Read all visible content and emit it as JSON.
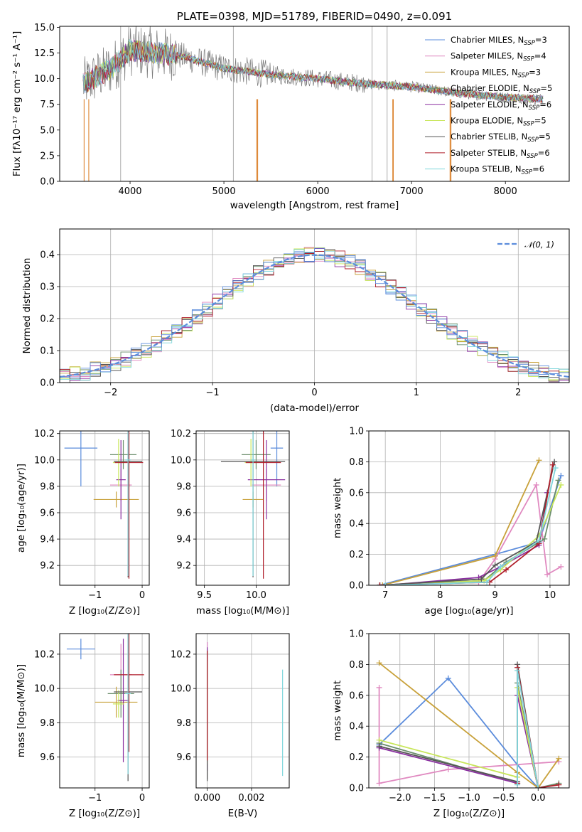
{
  "chart_data": [
    {
      "id": "spectrum",
      "type": "line",
      "title": "PLATE=0398, MJD=51789, FIBERID=0490, z=0.091",
      "xlabel": "wavelength [Angstrom, rest frame]",
      "ylabel": "Flux [fλ10⁻¹⁷ erg cm⁻² s⁻¹ A⁻¹]",
      "xlim": [
        3250,
        8680
      ],
      "ylim": [
        0,
        15.1
      ],
      "xticks": [
        4000,
        5000,
        6000,
        7000,
        8000
      ],
      "yticks": [
        0.0,
        2.5,
        5.0,
        7.5,
        10.0,
        12.5,
        15.0
      ],
      "legend_position": "top-right",
      "continuum": {
        "x": [
          3500,
          3800,
          4000,
          4500,
          5000,
          5500,
          6000,
          6500,
          7000,
          7500,
          8000,
          8400
        ],
        "y": [
          9.5,
          11.0,
          12.8,
          12.3,
          11.0,
          10.4,
          10.0,
          9.5,
          9.2,
          8.6,
          8.2,
          8.0
        ]
      },
      "series": [
        {
          "name": "Chabrier MILES, N",
          "sub": "SSP",
          "suffix": "=3",
          "color": "#5b8cdc"
        },
        {
          "name": "Salpeter MILES, N",
          "sub": "SSP",
          "suffix": "=4",
          "color": "#e089c0"
        },
        {
          "name": "Kroupa MILES, N",
          "sub": "SSP",
          "suffix": "=3",
          "color": "#c8a13a"
        },
        {
          "name": "Chabrier ELODIE, N",
          "sub": "SSP",
          "suffix": "=5",
          "color": "#6b8e6b"
        },
        {
          "name": "Salpeter ELODIE, N",
          "sub": "SSP",
          "suffix": "=6",
          "color": "#8a2fa0"
        },
        {
          "name": "Kroupa ELODIE, N",
          "sub": "SSP",
          "suffix": "=5",
          "color": "#c8e65a"
        },
        {
          "name": "Chabrier STELIB, N",
          "sub": "SSP",
          "suffix": "=5",
          "color": "#555555"
        },
        {
          "name": "Salpeter STELIB, N",
          "sub": "SSP",
          "suffix": "=6",
          "color": "#b01f2b"
        },
        {
          "name": "Kroupa STELIB, N",
          "sub": "SSP",
          "suffix": "=6",
          "color": "#7fd6dc"
        }
      ]
    },
    {
      "id": "residuals",
      "type": "line",
      "xlabel": "(data-model)/error",
      "ylabel": "Normed distribution",
      "xlim": [
        -2.5,
        2.5
      ],
      "ylim": [
        0,
        0.48
      ],
      "xticks": [
        -2,
        -1,
        0,
        1,
        2
      ],
      "yticks": [
        0.0,
        0.1,
        0.2,
        0.3,
        0.4
      ],
      "legend": "𝒩(0, 1)",
      "legend_position": "top-right",
      "bin_width": 0.1
    },
    {
      "id": "age-vs-Z",
      "type": "scatter",
      "xlabel": "Z [log₁₀(Z/Z⊙)]",
      "ylabel": "age  [log₁₀(age/yr)]",
      "xlim": [
        -1.75,
        0.15
      ],
      "ylim": [
        9.05,
        10.22
      ],
      "xticks": [
        -1,
        0
      ],
      "yticks": [
        9.2,
        9.4,
        9.6,
        9.8,
        10.0,
        10.2
      ],
      "points": [
        {
          "x": -1.3,
          "y": 10.09,
          "xerr": 0.35,
          "yerr": 0.29
        },
        {
          "x": -0.45,
          "y": 9.81,
          "xerr": 0.23,
          "yerr": 0.12
        },
        {
          "x": -0.55,
          "y": 9.7,
          "xerr": 0.48,
          "yerr": 0.06
        },
        {
          "x": -0.4,
          "y": 10.04,
          "xerr": 0.28,
          "yerr": 0.11
        },
        {
          "x": -0.45,
          "y": 9.85,
          "xerr": 0.1,
          "yerr": 0.3
        },
        {
          "x": -0.5,
          "y": 9.98,
          "xerr": 0.12,
          "yerr": 0.18
        },
        {
          "x": -0.3,
          "y": 9.99,
          "xerr": 0.3,
          "yerr": 0.88
        },
        {
          "x": -0.28,
          "y": 9.98,
          "xerr": 0.3,
          "yerr": 0.88
        },
        {
          "x": -0.3,
          "y": 10.0,
          "xerr": 0.06,
          "yerr": 0.88
        }
      ]
    },
    {
      "id": "age-vs-mass",
      "type": "scatter",
      "xlabel": "mass [log₁₀(M/M⊙)]",
      "xlim": [
        9.42,
        10.32
      ],
      "ylim": [
        9.05,
        10.22
      ],
      "xticks": [
        9.5,
        10.0
      ],
      "yticks": [
        9.2,
        9.4,
        9.6,
        9.8,
        10.0,
        10.2
      ],
      "points": [
        {
          "x": 10.2,
          "y": 10.09,
          "xerr": 0.06,
          "yerr": 0.29
        },
        {
          "x": 10.1,
          "y": 9.81,
          "xerr": 0.14,
          "yerr": 0.12
        },
        {
          "x": 9.97,
          "y": 9.7,
          "xerr": 0.1,
          "yerr": 0.06
        },
        {
          "x": 10.0,
          "y": 10.04,
          "xerr": 0.14,
          "yerr": 0.11
        },
        {
          "x": 10.1,
          "y": 9.85,
          "xerr": 0.18,
          "yerr": 0.3
        },
        {
          "x": 9.95,
          "y": 9.98,
          "xerr": 0.06,
          "yerr": 0.18
        },
        {
          "x": 9.97,
          "y": 9.99,
          "xerr": 0.31,
          "yerr": 0.88
        },
        {
          "x": 10.07,
          "y": 9.98,
          "xerr": 0.17,
          "yerr": 0.88
        },
        {
          "x": 9.97,
          "y": 10.0,
          "xerr": 0.02,
          "yerr": 0.88
        }
      ]
    },
    {
      "id": "weight-vs-age",
      "type": "line",
      "xlabel": "age  [log₁₀(age/yr)]",
      "ylabel": "mass weight",
      "xlim": [
        6.7,
        10.35
      ],
      "ylim": [
        0,
        1.0
      ],
      "xticks": [
        7,
        8,
        9,
        10
      ],
      "yticks": [
        0.0,
        0.2,
        0.4,
        0.6,
        0.8,
        1.0
      ],
      "lines": [
        {
          "x": [
            6.9,
            9.0,
            9.8,
            10.2
          ],
          "y": [
            0.0,
            0.2,
            0.28,
            0.71
          ]
        },
        {
          "x": [
            6.9,
            8.7,
            9.0,
            9.75,
            9.95,
            10.2
          ],
          "y": [
            0.0,
            0.02,
            0.17,
            0.65,
            0.07,
            0.12
          ]
        },
        {
          "x": [
            6.95,
            9.0,
            9.8
          ],
          "y": [
            0.0,
            0.19,
            0.81
          ]
        },
        {
          "x": [
            6.9,
            8.8,
            9.2,
            9.9,
            10.15
          ],
          "y": [
            0.0,
            0.03,
            0.15,
            0.3,
            0.68
          ]
        },
        {
          "x": [
            7.0,
            8.7,
            9.1,
            9.8,
            9.95
          ],
          "y": [
            0.0,
            0.05,
            0.12,
            0.26,
            0.6
          ]
        },
        {
          "x": [
            7.0,
            8.8,
            9.1,
            9.8,
            10.2
          ],
          "y": [
            0.0,
            0.03,
            0.1,
            0.32,
            0.65
          ]
        },
        {
          "x": [
            6.9,
            8.75,
            9.0,
            9.75,
            10.08
          ],
          "y": [
            0.0,
            0.04,
            0.13,
            0.28,
            0.8
          ]
        },
        {
          "x": [
            6.9,
            8.9,
            9.2,
            9.8,
            10.05
          ],
          "y": [
            0.0,
            0.02,
            0.1,
            0.27,
            0.78
          ]
        },
        {
          "x": [
            7.0,
            8.85,
            9.1,
            9.8,
            10.1
          ],
          "y": [
            0.0,
            0.02,
            0.12,
            0.29,
            0.76
          ]
        }
      ]
    },
    {
      "id": "mass-vs-Z",
      "type": "scatter",
      "xlabel": "Z [log₁₀(Z/Z⊙)]",
      "ylabel": "mass [log₁₀(M/M⊙)]",
      "xlim": [
        -1.75,
        0.15
      ],
      "ylim": [
        9.42,
        10.32
      ],
      "xticks": [
        -1,
        0
      ],
      "yticks": [
        9.6,
        9.8,
        10.0,
        10.2
      ],
      "points": [
        {
          "x": -1.3,
          "y": 10.23,
          "xerr": 0.3,
          "yerr": 0.06
        },
        {
          "x": -0.45,
          "y": 10.08,
          "xerr": 0.23,
          "yerr": 0.18
        },
        {
          "x": -0.55,
          "y": 9.92,
          "xerr": 0.45,
          "yerr": 0.09
        },
        {
          "x": -0.45,
          "y": 9.97,
          "xerr": 0.28,
          "yerr": 0.14
        },
        {
          "x": -0.4,
          "y": 9.93,
          "xerr": 0.12,
          "yerr": 0.36
        },
        {
          "x": -0.5,
          "y": 9.91,
          "xerr": 0.12,
          "yerr": 0.08
        },
        {
          "x": -0.3,
          "y": 9.98,
          "xerr": 0.3,
          "yerr": 0.52
        },
        {
          "x": -0.28,
          "y": 10.08,
          "xerr": 0.32,
          "yerr": 0.45
        },
        {
          "x": -0.3,
          "y": 9.97,
          "xerr": 0.06,
          "yerr": 0.47
        }
      ]
    },
    {
      "id": "mass-vs-EBV",
      "type": "scatter",
      "xlabel": "E(B-V)",
      "xlim": [
        -0.0005,
        0.0037
      ],
      "ylim": [
        9.42,
        10.32
      ],
      "xticks": [
        0.0,
        0.002
      ],
      "yticks": [
        9.6,
        9.8,
        10.0,
        10.2
      ],
      "points": [
        {
          "x": 0.0,
          "y": 9.92,
          "yerr": 0.35
        },
        {
          "x": 0.0,
          "y": 9.87,
          "yerr": 0.4
        },
        {
          "x": 0.0,
          "y": 9.9,
          "yerr": 0.32
        },
        {
          "x": 0.0,
          "y": 9.85,
          "yerr": 0.38
        },
        {
          "x": 0.0,
          "y": 9.88,
          "yerr": 0.36
        },
        {
          "x": 0.0,
          "y": 9.86,
          "yerr": 0.3
        },
        {
          "x": 0.0,
          "y": 9.84,
          "yerr": 0.38
        },
        {
          "x": 0.0,
          "y": 9.9,
          "yerr": 0.32
        },
        {
          "x": 0.0034,
          "y": 9.8,
          "yerr": 0.31
        }
      ]
    },
    {
      "id": "weight-vs-Z",
      "type": "line",
      "xlabel": "Z [log₁₀(Z/Z⊙)]",
      "ylabel": "mass weight",
      "xlim": [
        -2.45,
        0.45
      ],
      "ylim": [
        0,
        1.0
      ],
      "xticks": [
        -2.0,
        -1.5,
        -1.0,
        -0.5,
        0.0
      ],
      "yticks": [
        0.0,
        0.2,
        0.4,
        0.6,
        0.8,
        1.0
      ],
      "lines": [
        {
          "x": [
            -2.3,
            -1.3,
            -0.3,
            0.0
          ],
          "y": [
            0.28,
            0.71,
            0.15,
            0.0
          ]
        },
        {
          "x": [
            -2.3,
            -2.3,
            -1.3,
            0.3
          ],
          "y": [
            0.65,
            0.03,
            0.12,
            0.17
          ]
        },
        {
          "x": [
            -2.3,
            -0.3,
            0.0,
            0.3
          ],
          "y": [
            0.81,
            0.1,
            0.0,
            0.19
          ]
        },
        {
          "x": [
            -2.3,
            -0.3,
            -0.3,
            0.0,
            0.3
          ],
          "y": [
            0.29,
            0.03,
            0.68,
            0.0,
            0.03
          ]
        },
        {
          "x": [
            -2.3,
            -0.3,
            -0.3,
            0.0
          ],
          "y": [
            0.26,
            0.03,
            0.6,
            0.0
          ]
        },
        {
          "x": [
            -2.3,
            -0.3,
            -0.3,
            0.0
          ],
          "y": [
            0.31,
            0.07,
            0.65,
            0.0
          ]
        },
        {
          "x": [
            -2.3,
            -0.3,
            -0.3,
            0.0
          ],
          "y": [
            0.27,
            0.04,
            0.8,
            0.0
          ]
        },
        {
          "x": [
            -0.3,
            -0.3,
            0.0,
            0.3
          ],
          "y": [
            0.03,
            0.78,
            0.0,
            0.02
          ]
        },
        {
          "x": [
            -0.3,
            -0.3,
            0.0
          ],
          "y": [
            0.02,
            0.76,
            0.0
          ]
        }
      ]
    }
  ]
}
